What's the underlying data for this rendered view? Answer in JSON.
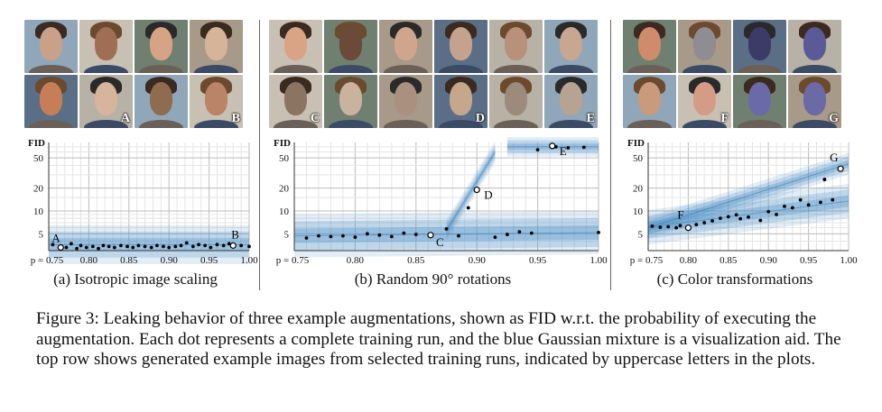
{
  "panels": [
    {
      "id": "a",
      "caption": "(a) Isotropic image scaling",
      "image_letters": [
        "A",
        "B"
      ],
      "face_colors": [
        "#c9a188",
        "#a06e55",
        "#d7a385",
        "#d5b499",
        "#c77e58",
        "#d6b59c",
        "#8f6b4f",
        "#b98467"
      ]
    },
    {
      "id": "b",
      "caption": "(b) Random 90° rotations",
      "image_letters": [
        "C",
        "D",
        "E"
      ],
      "face_colors": [
        "#d9a486",
        "#6b4a3a",
        "#cfa58c",
        "#c4a28e",
        "#b9907a",
        "#c9a691",
        "#8c7462",
        "#c9b39f",
        "#a9907f",
        "#c7a78b",
        "#9c8a7a",
        "#b8a292"
      ]
    },
    {
      "id": "c",
      "caption": "(c) Color transformations",
      "image_letters": [
        "F",
        "G"
      ],
      "face_colors": [
        "#d08a6c",
        "#8f8c92",
        "#3c3a66",
        "#5b5a99",
        "#c99a7c",
        "#d49c84",
        "#6a6aa8",
        "#6c6aa5"
      ]
    }
  ],
  "chart_data": [
    {
      "type": "scatter",
      "ylabel": "FID",
      "yticks": [
        5,
        10,
        20,
        50
      ],
      "xticks": [
        "p = 0.75",
        "0.80",
        "0.85",
        "0.90",
        "0.95",
        "1.00"
      ],
      "xlim": [
        0.75,
        1.0
      ],
      "ylim": [
        3,
        80
      ],
      "yscale": "log",
      "grid": true,
      "points": [
        [
          0.755,
          3.6
        ],
        [
          0.765,
          3.2
        ],
        [
          0.772,
          3.3
        ],
        [
          0.778,
          3.7
        ],
        [
          0.785,
          3.2
        ],
        [
          0.79,
          3.5
        ],
        [
          0.797,
          3.3
        ],
        [
          0.805,
          3.4
        ],
        [
          0.812,
          3.2
        ],
        [
          0.818,
          3.5
        ],
        [
          0.825,
          3.4
        ],
        [
          0.832,
          3.3
        ],
        [
          0.84,
          3.5
        ],
        [
          0.848,
          3.4
        ],
        [
          0.855,
          3.3
        ],
        [
          0.862,
          3.5
        ],
        [
          0.87,
          3.4
        ],
        [
          0.878,
          3.3
        ],
        [
          0.885,
          3.5
        ],
        [
          0.893,
          3.4
        ],
        [
          0.9,
          3.3
        ],
        [
          0.908,
          3.4
        ],
        [
          0.915,
          3.5
        ],
        [
          0.922,
          3.8
        ],
        [
          0.93,
          3.4
        ],
        [
          0.937,
          3.6
        ],
        [
          0.945,
          3.5
        ],
        [
          0.952,
          3.3
        ],
        [
          0.96,
          3.6
        ],
        [
          0.968,
          3.5
        ],
        [
          0.975,
          3.7
        ],
        [
          0.99,
          3.5
        ],
        [
          1.0,
          3.4
        ]
      ],
      "labeled_points": [
        {
          "label": "A",
          "x": 0.765,
          "y": 3.3
        },
        {
          "label": "B",
          "x": 0.98,
          "y": 3.5
        }
      ],
      "bands": [
        {
          "x": [
            0.75,
            1.0
          ],
          "y": [
            3.6,
            3.6
          ],
          "spread": 0.18
        }
      ]
    },
    {
      "type": "scatter",
      "ylabel": "FID",
      "yticks": [
        5,
        10,
        20,
        50
      ],
      "xticks": [
        "p = 0.75",
        "0.80",
        "0.85",
        "0.90",
        "0.95",
        "1.00"
      ],
      "xlim": [
        0.75,
        1.0
      ],
      "ylim": [
        3,
        80
      ],
      "yscale": "log",
      "grid": true,
      "points": [
        [
          0.76,
          4.4
        ],
        [
          0.77,
          4.7
        ],
        [
          0.78,
          4.6
        ],
        [
          0.79,
          4.7
        ],
        [
          0.8,
          4.5
        ],
        [
          0.81,
          5.0
        ],
        [
          0.82,
          4.8
        ],
        [
          0.83,
          4.6
        ],
        [
          0.84,
          5.1
        ],
        [
          0.85,
          4.9
        ],
        [
          0.875,
          5.8
        ],
        [
          0.885,
          4.7
        ],
        [
          0.893,
          11
        ],
        [
          0.915,
          4.5
        ],
        [
          0.925,
          4.9
        ],
        [
          0.935,
          5.3
        ],
        [
          0.945,
          5.1
        ],
        [
          0.95,
          64
        ],
        [
          0.965,
          70
        ],
        [
          0.975,
          68
        ],
        [
          0.988,
          69
        ],
        [
          1.0,
          5.2
        ]
      ],
      "labeled_points": [
        {
          "label": "C",
          "x": 0.862,
          "y": 4.8
        },
        {
          "label": "D",
          "x": 0.9,
          "y": 19
        },
        {
          "label": "E",
          "x": 0.962,
          "y": 72
        }
      ],
      "bands": [
        {
          "x": [
            0.75,
            1.0
          ],
          "y": [
            4.7,
            5.2
          ],
          "spread": 0.2
        },
        {
          "x": [
            0.875,
            0.915
          ],
          "y": [
            5.5,
            60
          ],
          "spread": 0.1
        },
        {
          "x": [
            0.925,
            1.0
          ],
          "y": [
            70,
            70
          ],
          "spread": 0.09
        }
      ]
    },
    {
      "type": "scatter",
      "ylabel": "FID",
      "yticks": [
        5,
        10,
        20,
        50
      ],
      "xticks": [
        "p = 0.75",
        "0.80",
        "0.85",
        "0.90",
        "0.95",
        "1.00"
      ],
      "xlim": [
        0.75,
        1.0
      ],
      "ylim": [
        3,
        80
      ],
      "yscale": "log",
      "grid": true,
      "points": [
        [
          0.755,
          6.3
        ],
        [
          0.765,
          6.1
        ],
        [
          0.775,
          6.2
        ],
        [
          0.785,
          6.0
        ],
        [
          0.79,
          6.4
        ],
        [
          0.81,
          6.6
        ],
        [
          0.82,
          7.0
        ],
        [
          0.83,
          7.4
        ],
        [
          0.84,
          8.0
        ],
        [
          0.85,
          8.4
        ],
        [
          0.86,
          8.9
        ],
        [
          0.865,
          7.9
        ],
        [
          0.875,
          8.3
        ],
        [
          0.89,
          7.5
        ],
        [
          0.9,
          9.8
        ],
        [
          0.91,
          9.0
        ],
        [
          0.92,
          11.5
        ],
        [
          0.93,
          11.0
        ],
        [
          0.94,
          14
        ],
        [
          0.95,
          12
        ],
        [
          0.965,
          13
        ],
        [
          0.97,
          26
        ],
        [
          0.98,
          14
        ]
      ],
      "labeled_points": [
        {
          "label": "F",
          "x": 0.8,
          "y": 6.0
        },
        {
          "label": "G",
          "x": 0.99,
          "y": 36
        }
      ],
      "bands": [
        {
          "x": [
            0.75,
            1.0
          ],
          "y": [
            6.1,
            13.5
          ],
          "spread": 0.16
        },
        {
          "x": [
            0.75,
            1.0
          ],
          "y": [
            6.0,
            42
          ],
          "spread": 0.1
        }
      ]
    }
  ],
  "figure_caption": "Figure 3: Leaking behavior of three example augmentations, shown as FID w.r.t. the probability of executing the augmentation. Each dot represents a complete training run, and the blue Gaussian mixture is a visualization aid. The top row shows generated example images from selected training runs, indicated by uppercase letters in the plots."
}
